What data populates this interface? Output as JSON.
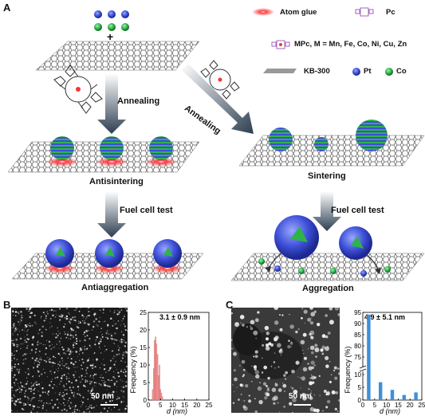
{
  "panel_a": {
    "letter": "A",
    "plus": "+",
    "legend": {
      "atom_glue": "Atom glue",
      "pc": "Pc",
      "mpc": "MPc, M = Mn, Fe, Co, Ni, Cu, Zn",
      "support": "KB-300",
      "pt": "Pt",
      "co": "Co"
    },
    "annealing_left": "Annealing",
    "annealing_right": "Annealing",
    "antisintering": "Antisintering",
    "sintering": "Sintering",
    "fuel_cell_left": "Fuel cell test",
    "fuel_cell_right": "Fuel cell test",
    "antiaggregation": "Antiaggregation",
    "aggregation": "Aggregation"
  },
  "panel_b": {
    "letter": "B",
    "scale_bar": "50 nm",
    "annotation": "3.1 ± 0.9 nm"
  },
  "panel_c": {
    "letter": "C",
    "scale_bar": "50 nm",
    "annotation": "4.9 ± 5.1 nm"
  },
  "colors": {
    "pt": "#3d4fd6",
    "co": "#2fb34a",
    "glue": "#ff2020",
    "hist_b": "#f4a0a0",
    "hist_c": "#3f8fd8",
    "arrow": "#2c3e50"
  },
  "chart_data": [
    {
      "type": "bar",
      "panel": "B",
      "xlabel": "d (nm)",
      "ylabel": "Frequency (%)",
      "xlim": [
        0,
        25
      ],
      "ylim": [
        0,
        25
      ],
      "xticks": [
        0,
        5,
        10,
        15,
        20,
        25
      ],
      "yticks": [
        0,
        5,
        10,
        15,
        20,
        25
      ],
      "x": [
        1.8,
        2.2,
        2.6,
        3.0,
        3.4,
        3.8,
        4.2,
        4.6,
        5.0,
        5.4,
        5.8
      ],
      "values": [
        3,
        9,
        17,
        18,
        16,
        13,
        7,
        10,
        3,
        2,
        1
      ]
    },
    {
      "type": "bar",
      "panel": "C",
      "xlabel": "d (nm)",
      "ylabel": "Frequency (%)",
      "xlim": [
        0,
        25
      ],
      "ylim_lower": [
        0,
        10
      ],
      "ylim_upper": [
        70,
        95
      ],
      "xticks": [
        0,
        5,
        10,
        15,
        20,
        25
      ],
      "yticks": [
        0,
        5,
        10,
        75,
        80,
        85,
        90,
        95
      ],
      "x": [
        2.5,
        7.5,
        12.5,
        17.5,
        22.5
      ],
      "values": [
        94,
        7,
        4,
        2,
        3
      ]
    }
  ]
}
